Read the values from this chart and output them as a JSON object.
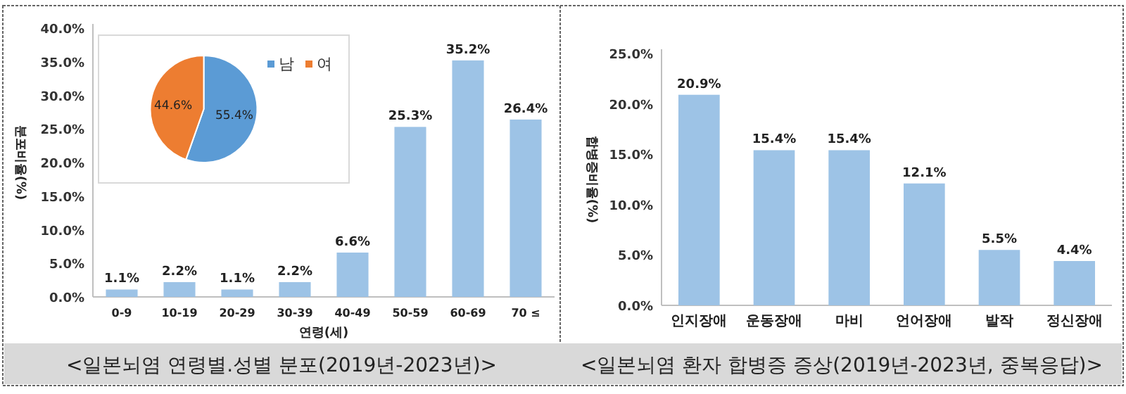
{
  "chart_data": [
    {
      "type": "bar",
      "title": "<일본뇌염  연령별.성별 분포(2019년-2023년)>",
      "xlabel": "연령(세)",
      "ylabel": "분포비율(%)",
      "categories": [
        "0-9",
        "10-19",
        "20-29",
        "30-39",
        "40-49",
        "50-59",
        "60-69",
        "70 ≤"
      ],
      "values": [
        1.1,
        2.2,
        1.1,
        2.2,
        6.6,
        25.3,
        35.2,
        26.4
      ],
      "value_labels": [
        "1.1%",
        "2.2%",
        "1.1%",
        "2.2%",
        "6.6%",
        "25.3%",
        "35.2%",
        "26.4%"
      ],
      "color": "#9dc3e6",
      "ylim": [
        0,
        40
      ],
      "yticks": [
        {
          "value": 0,
          "label": "0.0%"
        },
        {
          "value": 5,
          "label": "5.0%"
        },
        {
          "value": 10,
          "label": "10.0%"
        },
        {
          "value": 15,
          "label": "15.0%"
        },
        {
          "value": 20,
          "label": "20.0%"
        },
        {
          "value": 25,
          "label": "25.0%"
        },
        {
          "value": 30,
          "label": "30.0%"
        },
        {
          "value": 35,
          "label": "35.0%"
        },
        {
          "value": 40,
          "label": "40.0%"
        }
      ]
    },
    {
      "type": "pie",
      "categories": [
        "남",
        "여"
      ],
      "values": [
        55.4,
        44.6
      ],
      "colors": [
        "#5b9bd5",
        "#ed7d31"
      ],
      "value_labels": [
        "55.4%",
        "44.6%"
      ],
      "legend": "top right"
    },
    {
      "type": "bar",
      "title": "<일본뇌염 환자 합병증 증상(2019년-2023년, 중복응답)>",
      "ylabel": "합병증비율(%)",
      "categories": [
        "인지장애",
        "운동장애",
        "마비",
        "언어장애",
        "발작",
        "정신장애"
      ],
      "values": [
        20.9,
        15.4,
        15.4,
        12.1,
        5.5,
        4.4
      ],
      "value_labels": [
        "20.9%",
        "15.4%",
        "15.4%",
        "12.1%",
        "5.5%",
        "4.4%"
      ],
      "color": "#9dc3e6",
      "ylim": [
        0,
        25
      ],
      "yticks": [
        {
          "value": 0,
          "label": "0.0%"
        },
        {
          "value": 5,
          "label": "5.0%"
        },
        {
          "value": 10,
          "label": "10.0%"
        },
        {
          "value": 15,
          "label": "15.0%"
        },
        {
          "value": 20,
          "label": "20.0%"
        },
        {
          "value": 25,
          "label": "25.0%"
        }
      ]
    }
  ]
}
